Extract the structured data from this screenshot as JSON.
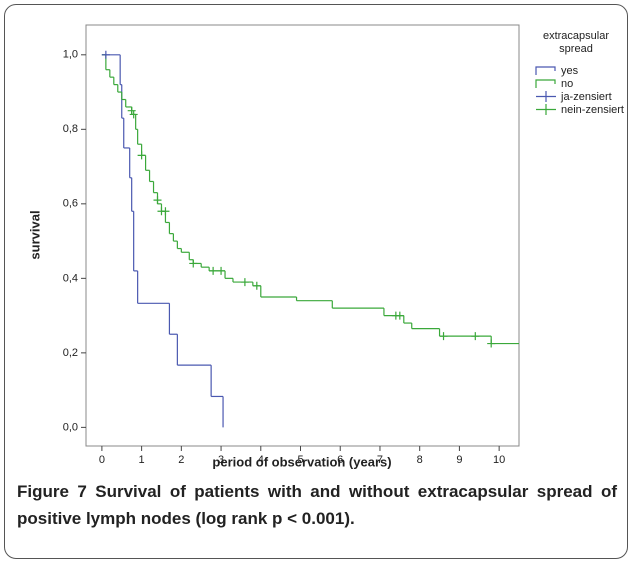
{
  "chart_data": {
    "type": "survival",
    "x_label": "period of observation (years)",
    "y_label": "survival",
    "legend_title": "extracapsular spread",
    "legend_position": "right",
    "xlim": [
      -0.4,
      10.5
    ],
    "ylim": [
      -0.05,
      1.08
    ],
    "xticks": [
      0,
      1,
      2,
      3,
      4,
      5,
      6,
      7,
      8,
      9,
      10
    ],
    "yticks": [
      {
        "value": 0,
        "label": "0,0"
      },
      {
        "value": 0.2,
        "label": "0,2"
      },
      {
        "value": 0.4,
        "label": "0,4"
      },
      {
        "value": 0.6,
        "label": "0,6"
      },
      {
        "value": 0.8,
        "label": "0,8"
      },
      {
        "value": 1,
        "label": "1,0"
      }
    ],
    "series": [
      {
        "name": "yes",
        "color": "#4a58b0",
        "style": "step",
        "x": [
          0,
          0.46,
          0.5,
          0.55,
          0.7,
          0.75,
          0.8,
          0.9,
          1.7,
          1.9,
          2.75,
          3.05
        ],
        "values": [
          1.0,
          0.92,
          0.83,
          0.75,
          0.67,
          0.58,
          0.42,
          0.333,
          0.25,
          0.167,
          0.083,
          0
        ]
      },
      {
        "name": "no",
        "color": "#3aa83a",
        "style": "step",
        "x": [
          0,
          0.1,
          0.2,
          0.3,
          0.4,
          0.5,
          0.6,
          0.75,
          0.85,
          0.9,
          1.0,
          1.1,
          1.2,
          1.3,
          1.4,
          1.5,
          1.6,
          1.7,
          1.8,
          1.9,
          2.0,
          2.2,
          2.3,
          2.5,
          2.7,
          3.1,
          3.3,
          3.8,
          4.0,
          4.9,
          5.8,
          7.1,
          7.6,
          7.8,
          8.5,
          9.8,
          10.5
        ],
        "values": [
          1.0,
          0.96,
          0.94,
          0.92,
          0.9,
          0.88,
          0.86,
          0.84,
          0.8,
          0.76,
          0.73,
          0.69,
          0.66,
          0.63,
          0.6,
          0.58,
          0.55,
          0.52,
          0.5,
          0.48,
          0.47,
          0.45,
          0.44,
          0.43,
          0.42,
          0.4,
          0.39,
          0.38,
          0.35,
          0.34,
          0.32,
          0.3,
          0.28,
          0.265,
          0.245,
          0.225,
          0.225
        ]
      },
      {
        "name": "ja-zensiert",
        "color": "#4a58b0",
        "style": "plus",
        "x": [
          0.1
        ],
        "values": [
          1.0
        ]
      },
      {
        "name": "nein-zensiert",
        "color": "#3aa83a",
        "style": "plus",
        "x": [
          0.75,
          0.8,
          1.0,
          1.4,
          1.5,
          1.6,
          2.3,
          2.8,
          3.0,
          3.6,
          3.9,
          7.4,
          7.5,
          8.6,
          9.4,
          9.8
        ],
        "values": [
          0.85,
          0.84,
          0.73,
          0.61,
          0.58,
          0.58,
          0.44,
          0.42,
          0.42,
          0.39,
          0.38,
          0.3,
          0.3,
          0.245,
          0.245,
          0.225
        ]
      }
    ]
  },
  "figure": {
    "label": "Figure 7",
    "caption": "Survival of patients with and without extracapsular spread of positive lymph nodes (log rank p < 0.001)."
  }
}
